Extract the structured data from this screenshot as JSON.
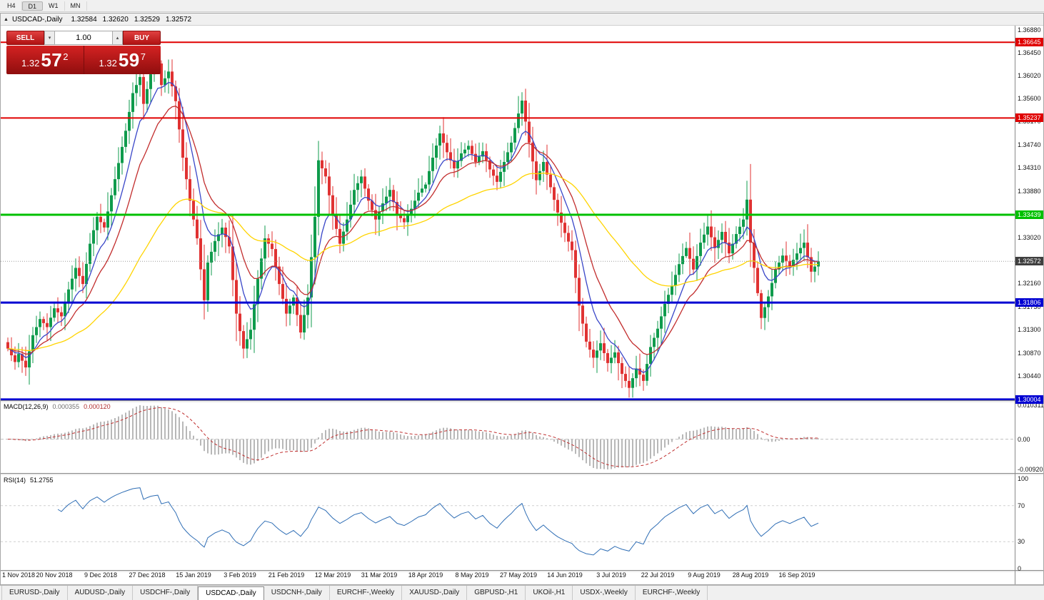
{
  "toolbar": {
    "timeframes": [
      {
        "label": "H4",
        "active": false
      },
      {
        "label": "D1",
        "active": true
      },
      {
        "label": "W1",
        "active": false
      },
      {
        "label": "MN",
        "active": false
      }
    ]
  },
  "chart_window": {
    "title": {
      "symbol": "USDCAD-,Daily",
      "open": "1.32584",
      "high": "1.32620",
      "low": "1.32529",
      "close": "1.32572"
    }
  },
  "trade_panel": {
    "sell_label": "SELL",
    "buy_label": "BUY",
    "volume": "1.00",
    "sell_price": {
      "big": "1.32",
      "pips": "57",
      "pt": "2",
      "full": "1.32572"
    },
    "buy_price": {
      "big": "1.32",
      "pips": "59",
      "pt": "7",
      "full": "1.32597"
    }
  },
  "price_axis": {
    "ticks": [
      "1.36880",
      "1.36450",
      "1.36020",
      "1.35600",
      "1.35170",
      "1.34740",
      "1.34310",
      "1.33880",
      "1.33450",
      "1.33020",
      "1.32590",
      "1.32160",
      "1.31730",
      "1.31300",
      "1.30870",
      "1.30440",
      "1.30010"
    ]
  },
  "hlines": [
    {
      "price": 1.36645,
      "label": "1.36645",
      "color": "#e00000",
      "width": 2
    },
    {
      "price": 1.35237,
      "label": "1.35237",
      "color": "#e00000",
      "width": 2
    },
    {
      "price": 1.33439,
      "label": "1.33439",
      "color": "#00c000",
      "width": 3
    },
    {
      "price": 1.31806,
      "label": "1.31806",
      "color": "#0000d2",
      "width": 3
    },
    {
      "price": 1.30004,
      "label": "1.30004",
      "color": "#0000d2",
      "width": 3
    }
  ],
  "current_price": {
    "value": "1.32572",
    "num": 1.32572
  },
  "macd_panel": {
    "name": "MACD(12,26,9)",
    "main_value": "0.000355",
    "signal_value": "0.000120",
    "scale_max": "0.010311",
    "scale_zero": "0.00",
    "scale_min": "-0.009203"
  },
  "rsi_panel": {
    "name": "RSI(14)",
    "value": "51.2755",
    "levels": [
      "100",
      "70",
      "30",
      "0"
    ]
  },
  "date_axis": [
    "1 Nov 2018",
    "20 Nov 2018",
    "9 Dec 2018",
    "27 Dec 2018",
    "15 Jan 2019",
    "3 Feb 2019",
    "21 Feb 2019",
    "12 Mar 2019",
    "31 Mar 2019",
    "18 Apr 2019",
    "8 May 2019",
    "27 May 2019",
    "14 Jun 2019",
    "3 Jul 2019",
    "22 Jul 2019",
    "9 Aug 2019",
    "28 Aug 2019",
    "16 Sep 2019"
  ],
  "tabs": {
    "items": [
      {
        "label": "EURUSD-,Daily",
        "active": false
      },
      {
        "label": "AUDUSD-,Daily",
        "active": false
      },
      {
        "label": "USDCHF-,Daily",
        "active": false
      },
      {
        "label": "USDCAD-,Daily",
        "active": true
      },
      {
        "label": "USDCNH-,Daily",
        "active": false
      },
      {
        "label": "EURCHF-,Weekly",
        "active": false
      },
      {
        "label": "XAUUSD-,Daily",
        "active": false
      },
      {
        "label": "GBPUSD-,H1",
        "active": false
      },
      {
        "label": "UKOil-,H1",
        "active": false
      },
      {
        "label": "USDX-,Weekly",
        "active": false
      },
      {
        "label": "EURCHF-,Weekly",
        "active": false
      }
    ]
  },
  "colors": {
    "up": "#0f9b4c",
    "down": "#e03232",
    "resistance_red": "#e00000",
    "support_green": "#00c000",
    "support_blue": "#0000d2",
    "current": "#3f3f3f",
    "ma_fast_blue": "#3946c8",
    "ma_mid_red": "#c22d2d",
    "ma_slow_yellow": "#ffd400",
    "macd_hist": "#b8b8b8",
    "macd_signal": "#c03030",
    "rsi": "#2f6eb5"
  },
  "chart_data": {
    "type": "candlestick",
    "symbol": "USDCAD",
    "timeframe": "Daily",
    "y_axis_range": [
      1.2999,
      1.3694
    ],
    "candle_count": 228,
    "last_bar": {
      "open": 1.32584,
      "high": 1.3262,
      "low": 1.32529,
      "close": 1.32572
    },
    "bid": 1.32572,
    "ask": 1.32597,
    "horizontal_levels": [
      1.36645,
      1.35237,
      1.33439,
      1.31806,
      1.30004
    ],
    "close_anchors": [
      [
        0,
        1.3095
      ],
      [
        2,
        1.307
      ],
      [
        3,
        1.3085
      ],
      [
        5,
        1.306
      ],
      [
        7,
        1.312
      ],
      [
        9,
        1.315
      ],
      [
        11,
        1.3135
      ],
      [
        13,
        1.317
      ],
      [
        15,
        1.3155
      ],
      [
        17,
        1.3205
      ],
      [
        19,
        1.3245
      ],
      [
        21,
        1.3215
      ],
      [
        23,
        1.329
      ],
      [
        25,
        1.334
      ],
      [
        27,
        1.332
      ],
      [
        29,
        1.338
      ],
      [
        31,
        1.344
      ],
      [
        33,
        1.35
      ],
      [
        35,
        1.357
      ],
      [
        37,
        1.36
      ],
      [
        38,
        1.355
      ],
      [
        40,
        1.3605
      ],
      [
        42,
        1.3625
      ],
      [
        43,
        1.3585
      ],
      [
        45,
        1.361
      ],
      [
        47,
        1.3555
      ],
      [
        49,
        1.345
      ],
      [
        51,
        1.337
      ],
      [
        53,
        1.33
      ],
      [
        55,
        1.3185
      ],
      [
        56,
        1.3255
      ],
      [
        58,
        1.3295
      ],
      [
        60,
        1.332
      ],
      [
        62,
        1.3285
      ],
      [
        64,
        1.316
      ],
      [
        66,
        1.3095
      ],
      [
        68,
        1.313
      ],
      [
        70,
        1.3225
      ],
      [
        72,
        1.33
      ],
      [
        74,
        1.328
      ],
      [
        76,
        1.3215
      ],
      [
        78,
        1.316
      ],
      [
        80,
        1.319
      ],
      [
        82,
        1.3125
      ],
      [
        84,
        1.319
      ],
      [
        86,
        1.334
      ],
      [
        87,
        1.3445
      ],
      [
        89,
        1.3415
      ],
      [
        91,
        1.3345
      ],
      [
        93,
        1.329
      ],
      [
        95,
        1.3335
      ],
      [
        97,
        1.339
      ],
      [
        99,
        1.3415
      ],
      [
        101,
        1.337
      ],
      [
        103,
        1.3335
      ],
      [
        105,
        1.3365
      ],
      [
        107,
        1.339
      ],
      [
        109,
        1.3345
      ],
      [
        111,
        1.333
      ],
      [
        113,
        1.3355
      ],
      [
        115,
        1.3385
      ],
      [
        117,
        1.34
      ],
      [
        119,
        1.345
      ],
      [
        121,
        1.3495
      ],
      [
        123,
        1.346
      ],
      [
        125,
        1.343
      ],
      [
        127,
        1.3458
      ],
      [
        129,
        1.3472
      ],
      [
        131,
        1.3442
      ],
      [
        133,
        1.3462
      ],
      [
        135,
        1.3428
      ],
      [
        137,
        1.3405
      ],
      [
        139,
        1.3442
      ],
      [
        141,
        1.3478
      ],
      [
        143,
        1.3532
      ],
      [
        144,
        1.3556
      ],
      [
        146,
        1.3478
      ],
      [
        148,
        1.3408
      ],
      [
        150,
        1.3442
      ],
      [
        152,
        1.3395
      ],
      [
        154,
        1.3348
      ],
      [
        156,
        1.331
      ],
      [
        158,
        1.3278
      ],
      [
        160,
        1.3175
      ],
      [
        162,
        1.3108
      ],
      [
        164,
        1.3078
      ],
      [
        166,
        1.3105
      ],
      [
        168,
        1.3068
      ],
      [
        170,
        1.3088
      ],
      [
        172,
        1.3048
      ],
      [
        174,
        1.3022
      ],
      [
        176,
        1.3058
      ],
      [
        178,
        1.3035
      ],
      [
        180,
        1.3098
      ],
      [
        182,
        1.3132
      ],
      [
        184,
        1.3178
      ],
      [
        186,
        1.3212
      ],
      [
        188,
        1.3252
      ],
      [
        190,
        1.3282
      ],
      [
        192,
        1.3242
      ],
      [
        194,
        1.3292
      ],
      [
        196,
        1.3322
      ],
      [
        198,
        1.3282
      ],
      [
        200,
        1.3312
      ],
      [
        202,
        1.3272
      ],
      [
        204,
        1.3308
      ],
      [
        206,
        1.3335
      ],
      [
        207,
        1.3372
      ],
      [
        208,
        1.3292
      ],
      [
        210,
        1.3198
      ],
      [
        211,
        1.3152
      ],
      [
        213,
        1.3192
      ],
      [
        215,
        1.3242
      ],
      [
        217,
        1.3268
      ],
      [
        219,
        1.3248
      ],
      [
        221,
        1.3272
      ],
      [
        223,
        1.3292
      ],
      [
        225,
        1.3238
      ],
      [
        227,
        1.32572
      ]
    ],
    "indicators": {
      "moving_averages": [
        {
          "period": 8,
          "color": "#3946c8"
        },
        {
          "period": 16,
          "color": "#c22d2d"
        },
        {
          "period": 55,
          "color": "#ffd400"
        }
      ],
      "macd": {
        "fast": 12,
        "slow": 26,
        "signal": 9,
        "main_value": 0.000355,
        "signal_value": 0.00012,
        "scale": [
          -0.009203,
          0.010311
        ]
      },
      "rsi": {
        "period": 14,
        "value": 51.2755,
        "levels": [
          70,
          30
        ]
      }
    },
    "note": "close_anchors are [bar_index, close] control points read from the chart; intermediate bars are interpolated for rendering"
  }
}
